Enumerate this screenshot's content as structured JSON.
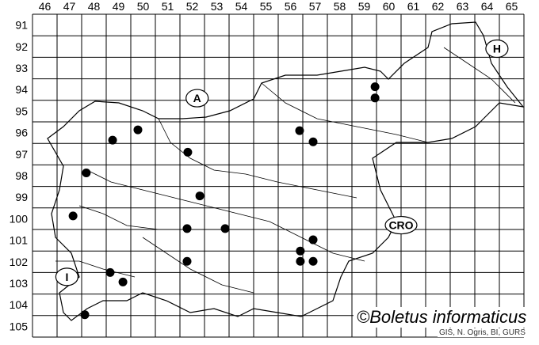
{
  "map": {
    "columns": [
      "46",
      "47",
      "48",
      "49",
      "50",
      "51",
      "52",
      "53",
      "54",
      "55",
      "56",
      "57",
      "58",
      "59",
      "60",
      "61",
      "62",
      "63",
      "64",
      "65"
    ],
    "rows": [
      "91",
      "92",
      "93",
      "94",
      "95",
      "96",
      "97",
      "98",
      "99",
      "100",
      "101",
      "102",
      "103",
      "104",
      "105"
    ],
    "country_labels": [
      {
        "text": "A",
        "col": 52.7,
        "row": 94.9
      },
      {
        "text": "H",
        "col": 64.9,
        "row": 92.6
      },
      {
        "text": "CRO",
        "col": 61.0,
        "row": 100.8
      },
      {
        "text": "I",
        "col": 47.4,
        "row": 103.2
      }
    ],
    "records": [
      {
        "col": 49.26,
        "row": 96.85
      },
      {
        "col": 50.29,
        "row": 96.37
      },
      {
        "col": 52.32,
        "row": 97.41
      },
      {
        "col": 48.19,
        "row": 98.37
      },
      {
        "col": 52.81,
        "row": 99.44
      },
      {
        "col": 47.65,
        "row": 100.37
      },
      {
        "col": 52.29,
        "row": 100.96
      },
      {
        "col": 53.84,
        "row": 100.96
      },
      {
        "col": 52.29,
        "row": 102.48
      },
      {
        "col": 49.16,
        "row": 103.0
      },
      {
        "col": 49.68,
        "row": 103.44
      },
      {
        "col": 48.13,
        "row": 104.96
      },
      {
        "col": 56.87,
        "row": 96.41
      },
      {
        "col": 57.42,
        "row": 96.93
      },
      {
        "col": 59.94,
        "row": 94.37
      },
      {
        "col": 59.94,
        "row": 94.89
      },
      {
        "col": 57.42,
        "row": 101.48
      },
      {
        "col": 56.9,
        "row": 102.0
      },
      {
        "col": 56.9,
        "row": 102.48
      },
      {
        "col": 57.42,
        "row": 102.48
      }
    ],
    "record_color": "#000000"
  },
  "credit": "©Boletus informaticus",
  "source": "GIS, N. Ogris, BI, GURS"
}
